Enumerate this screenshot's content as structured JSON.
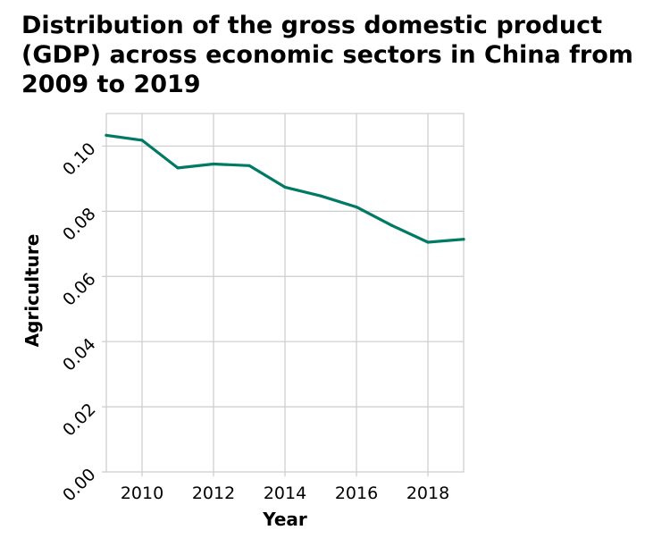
{
  "chart_data": {
    "type": "line",
    "title": "Distribution of the gross domestic product (GDP) across economic sectors in China from 2009 to 2019",
    "xlabel": "Year",
    "ylabel": "Agriculture",
    "xlim": [
      2009,
      2019
    ],
    "ylim": [
      0,
      0.11
    ],
    "xticks": [
      2010,
      2012,
      2014,
      2016,
      2018
    ],
    "xtick_labels": [
      "2010",
      "2012",
      "2014",
      "2016",
      "2018"
    ],
    "yticks": [
      0,
      0.02,
      0.04,
      0.06,
      0.08,
      0.1
    ],
    "ytick_labels": [
      "0.00",
      "0.02",
      "0.04",
      "0.06",
      "0.08",
      "0.10"
    ],
    "grid": true,
    "line_color": "#007a64",
    "grid_color": "#cccccc",
    "x": [
      2009,
      2010,
      2011,
      2012,
      2013,
      2014,
      2015,
      2016,
      2017,
      2018,
      2019
    ],
    "series": [
      {
        "values": [
          0.1033,
          0.1018,
          0.0933,
          0.0945,
          0.094,
          0.0874,
          0.0847,
          0.0813,
          0.0756,
          0.0705,
          0.0714
        ]
      }
    ]
  }
}
